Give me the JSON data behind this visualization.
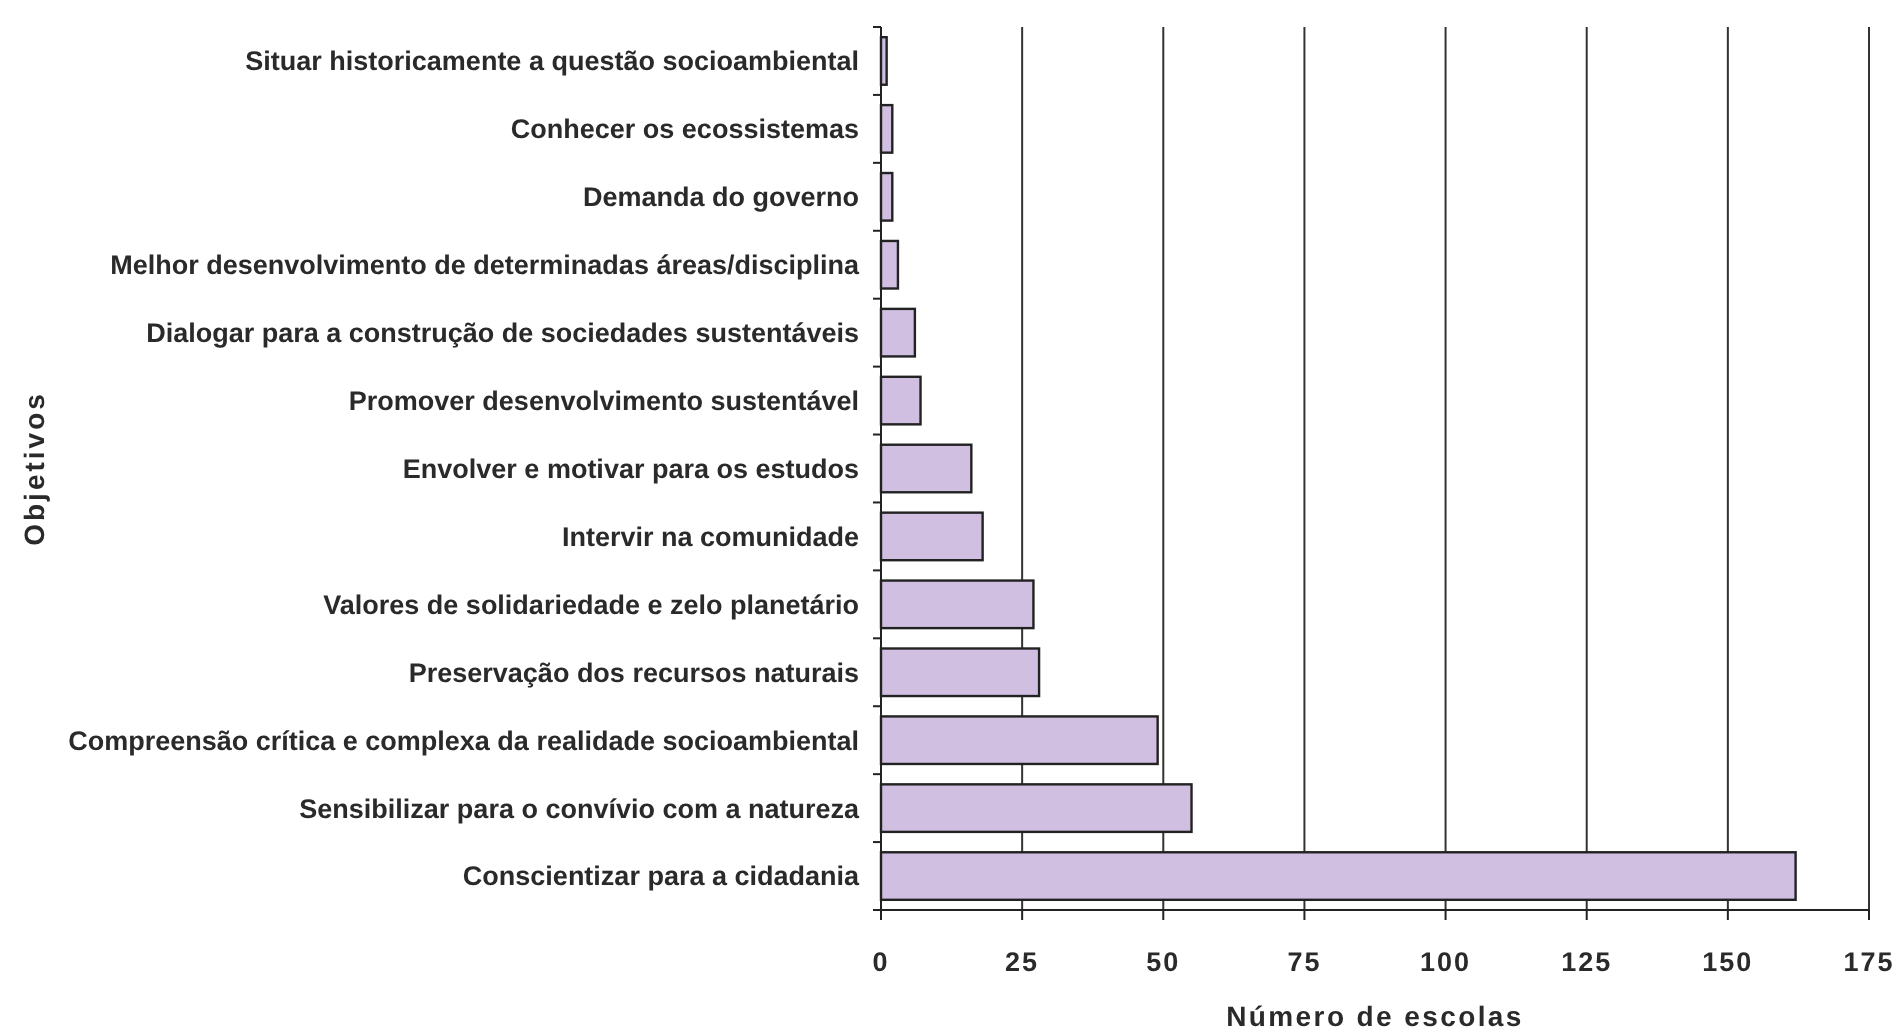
{
  "chart_data": {
    "type": "bar",
    "orientation": "horizontal",
    "categories": [
      "Situar historicamente a questão socioambiental",
      "Conhecer os ecossistemas",
      "Demanda do governo",
      "Melhor desenvolvimento de determinadas áreas/disciplina",
      "Dialogar para a construção de sociedades sustentáveis",
      "Promover desenvolvimento sustentável",
      "Envolver e motivar para os estudos",
      "Intervir na comunidade",
      "Valores de solidariedade e zelo planetário",
      "Preservação dos recursos naturais",
      "Compreensão crítica e complexa da realidade socioambiental",
      "Sensibilizar para o convívio com a natureza",
      "Conscientizar para a cidadania"
    ],
    "values": [
      1,
      2,
      2,
      3,
      6,
      7,
      16,
      18,
      27,
      28,
      49,
      55,
      162
    ],
    "color": "#d0bfe0",
    "xlabel": "Número de escolas",
    "ylabel": "Objetivos",
    "xlim": [
      0,
      175
    ],
    "xticks": [
      0,
      25,
      50,
      75,
      100,
      125,
      150,
      175
    ],
    "grid": "x"
  }
}
